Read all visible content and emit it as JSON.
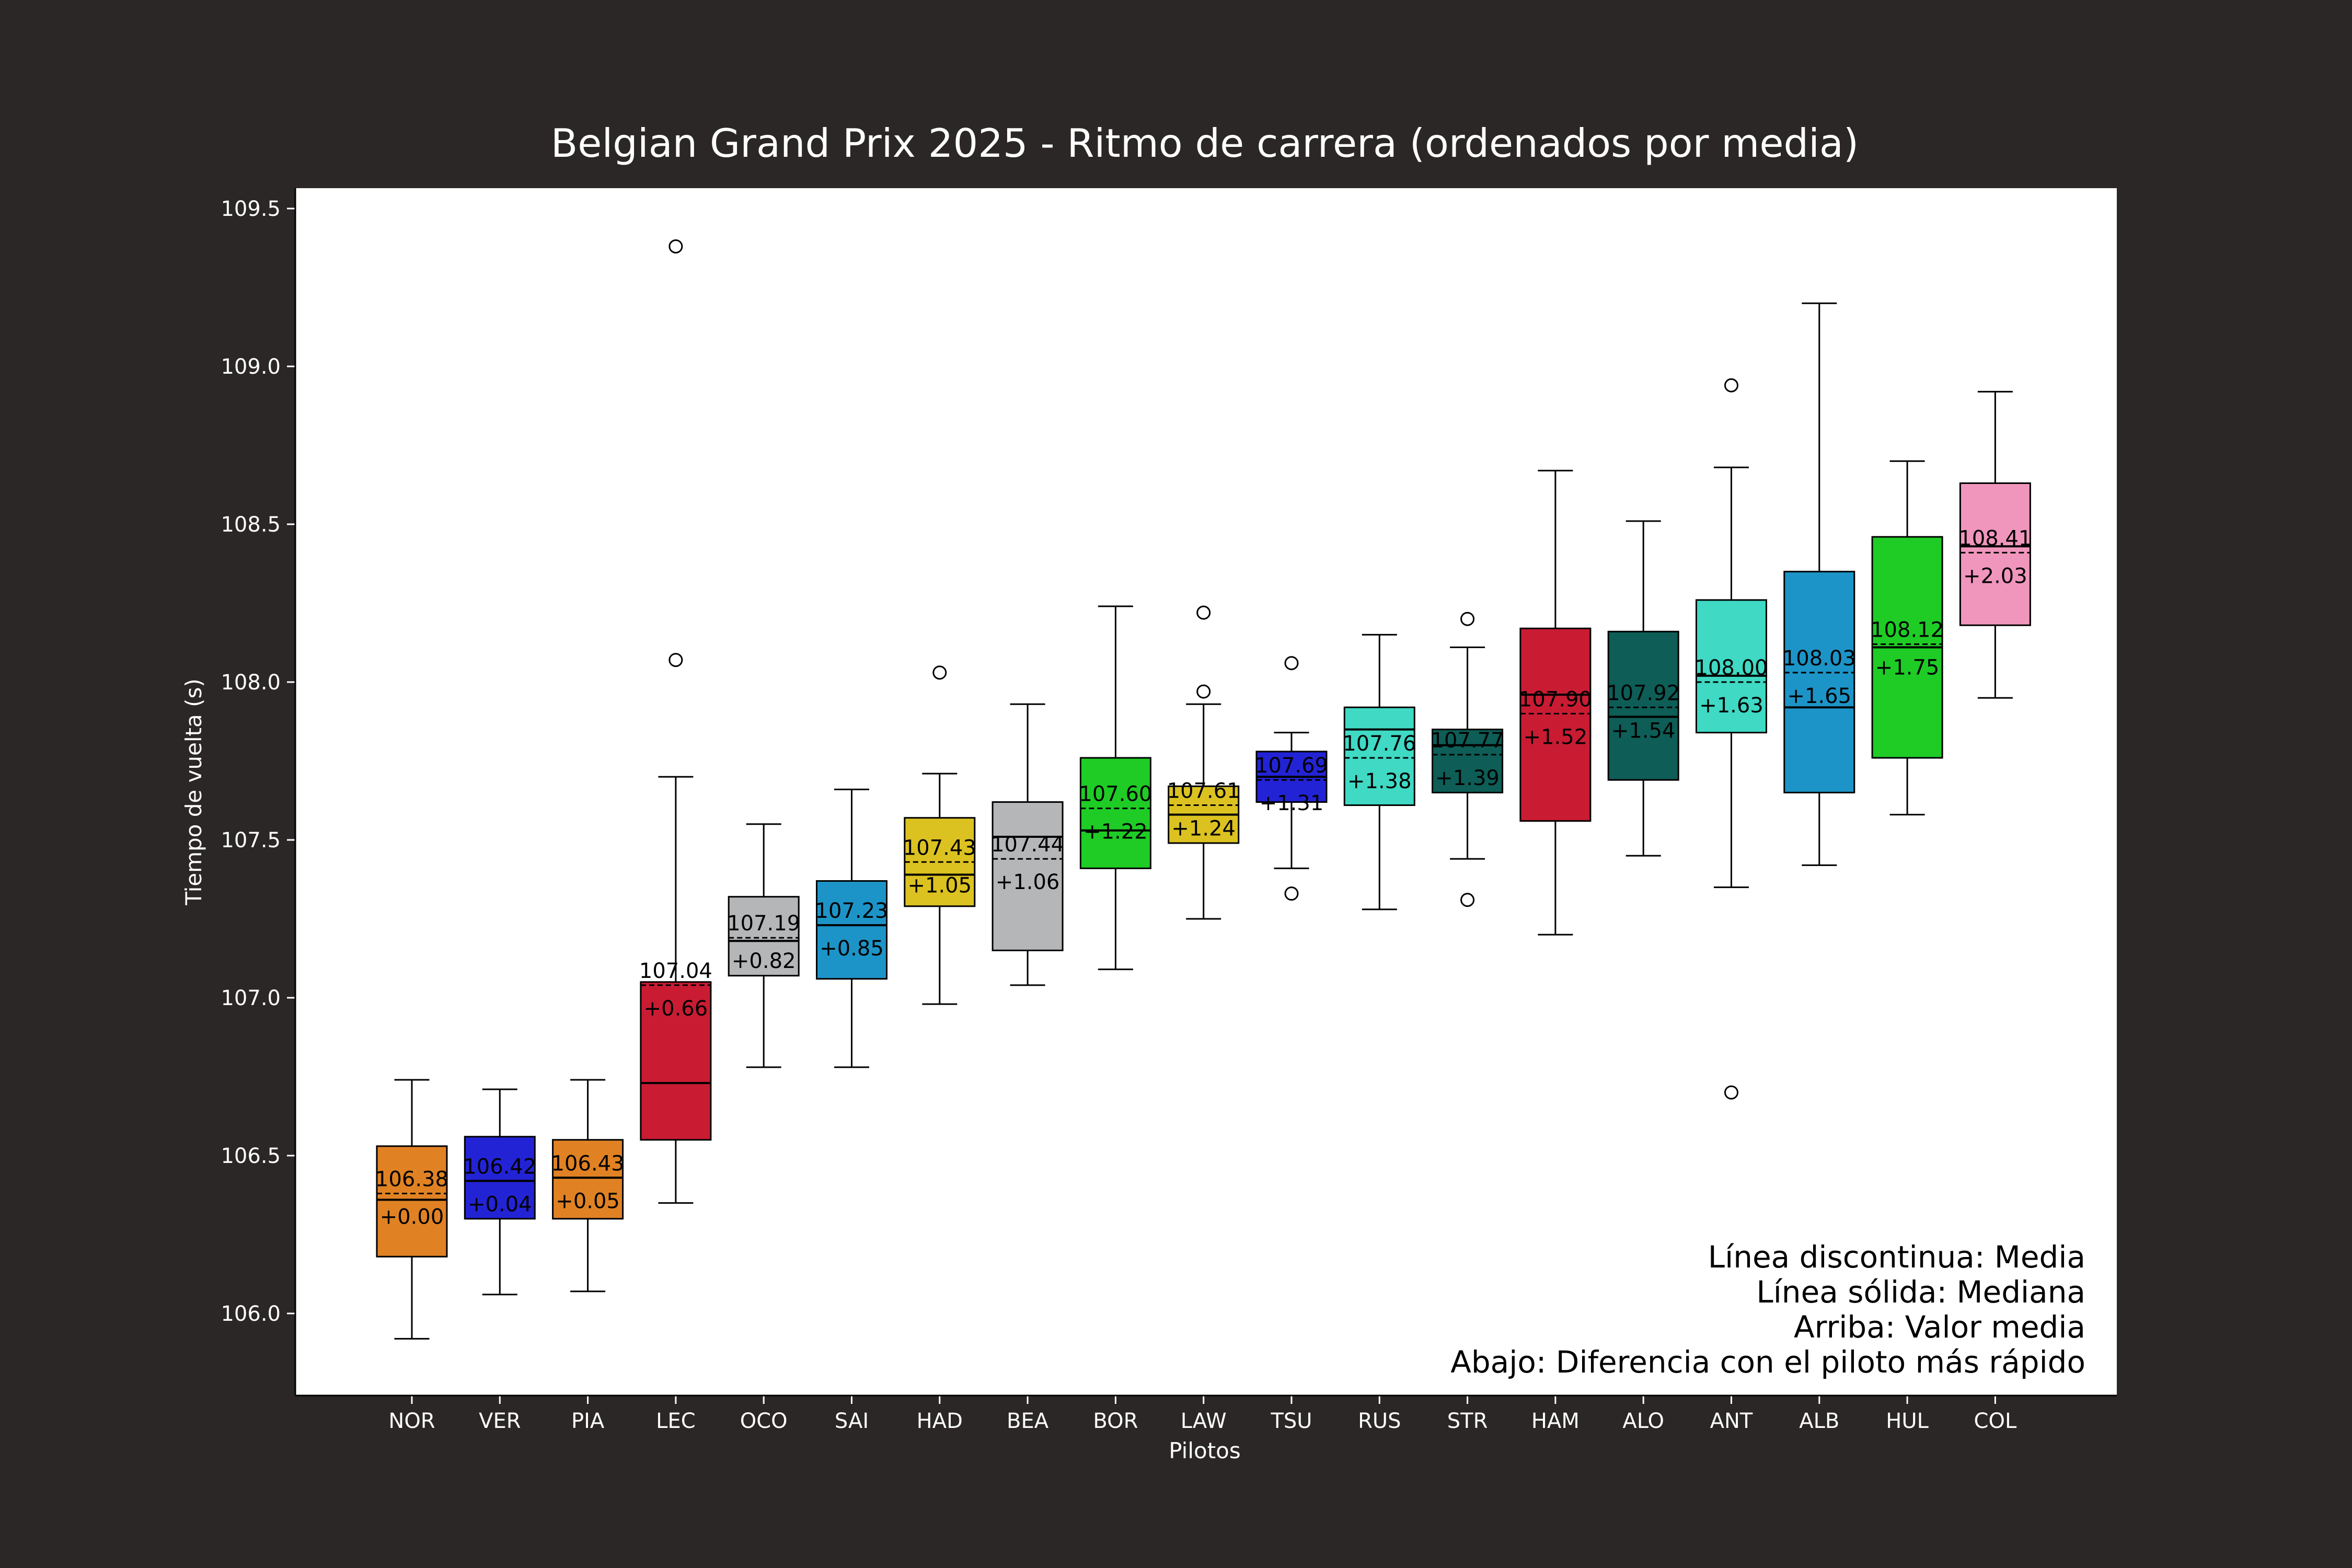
{
  "chart_data": {
    "type": "box",
    "title": "Belgian Grand Prix 2025 - Ritmo de carrera (ordenados por media)",
    "xlabel": "Pilotos",
    "ylabel": "Tiempo de vuelta (s)",
    "ylim": [
      105.75,
      109.57
    ],
    "yticks": [
      "106.0",
      "106.5",
      "107.0",
      "107.5",
      "108.0",
      "108.5",
      "109.0",
      "109.5"
    ],
    "grid": false,
    "legend_lines": [
      "Línea discontinua: Media",
      "Línea sólida: Mediana",
      "Arriba: Valor media",
      "Abajo: Diferencia con el piloto más rápido"
    ],
    "series": [
      {
        "driver": "NOR",
        "color": "#e08224",
        "whisker_low": 105.92,
        "q1": 106.18,
        "median": 106.36,
        "q3": 106.53,
        "whisker_high": 106.74,
        "mean": 106.38,
        "mean_label": "106.38",
        "delta_label": "+0.00",
        "outliers": []
      },
      {
        "driver": "VER",
        "color": "#2323d6",
        "whisker_low": 106.06,
        "q1": 106.3,
        "median": 106.42,
        "q3": 106.56,
        "whisker_high": 106.71,
        "mean": 106.42,
        "mean_label": "106.42",
        "delta_label": "+0.04",
        "outliers": []
      },
      {
        "driver": "PIA",
        "color": "#e08224",
        "whisker_low": 106.07,
        "q1": 106.3,
        "median": 106.43,
        "q3": 106.55,
        "whisker_high": 106.74,
        "mean": 106.43,
        "mean_label": "106.43",
        "delta_label": "+0.05",
        "outliers": []
      },
      {
        "driver": "LEC",
        "color": "#c91c33",
        "whisker_low": 106.35,
        "q1": 106.55,
        "median": 106.73,
        "q3": 107.05,
        "whisker_high": 107.7,
        "mean": 107.04,
        "mean_label": "107.04",
        "delta_label": "+0.66",
        "outliers": [
          108.07,
          109.38
        ]
      },
      {
        "driver": "OCO",
        "color": "#b4b6b8",
        "whisker_low": 106.78,
        "q1": 107.07,
        "median": 107.18,
        "q3": 107.32,
        "whisker_high": 107.55,
        "mean": 107.19,
        "mean_label": "107.19",
        "delta_label": "+0.82",
        "outliers": []
      },
      {
        "driver": "SAI",
        "color": "#1d94c7",
        "whisker_low": 106.78,
        "q1": 107.06,
        "median": 107.23,
        "q3": 107.37,
        "whisker_high": 107.66,
        "mean": 107.23,
        "mean_label": "107.23",
        "delta_label": "+0.85",
        "outliers": []
      },
      {
        "driver": "HAD",
        "color": "#dcc221",
        "whisker_low": 106.98,
        "q1": 107.29,
        "median": 107.39,
        "q3": 107.57,
        "whisker_high": 107.71,
        "mean": 107.43,
        "mean_label": "107.43",
        "delta_label": "+1.05",
        "outliers": [
          108.03
        ]
      },
      {
        "driver": "BEA",
        "color": "#b4b6b8",
        "whisker_low": 107.04,
        "q1": 107.15,
        "median": 107.51,
        "q3": 107.62,
        "whisker_high": 107.93,
        "mean": 107.44,
        "mean_label": "107.44",
        "delta_label": "+1.06",
        "outliers": []
      },
      {
        "driver": "BOR",
        "color": "#1fcc26",
        "whisker_low": 107.09,
        "q1": 107.41,
        "median": 107.53,
        "q3": 107.76,
        "whisker_high": 108.24,
        "mean": 107.6,
        "mean_label": "107.60",
        "delta_label": "+1.22",
        "outliers": []
      },
      {
        "driver": "LAW",
        "color": "#dcc221",
        "whisker_low": 107.25,
        "q1": 107.49,
        "median": 107.58,
        "q3": 107.67,
        "whisker_high": 107.93,
        "mean": 107.61,
        "mean_label": "107.61",
        "delta_label": "+1.24",
        "outliers": [
          107.97,
          108.22
        ]
      },
      {
        "driver": "TSU",
        "color": "#2323d6",
        "whisker_low": 107.41,
        "q1": 107.62,
        "median": 107.7,
        "q3": 107.78,
        "whisker_high": 107.84,
        "mean": 107.69,
        "mean_label": "107.69",
        "delta_label": "+1.31",
        "outliers": [
          107.33,
          108.06
        ]
      },
      {
        "driver": "RUS",
        "color": "#3fd9c4",
        "whisker_low": 107.28,
        "q1": 107.61,
        "median": 107.85,
        "q3": 107.92,
        "whisker_high": 108.15,
        "mean": 107.76,
        "mean_label": "107.76",
        "delta_label": "+1.38",
        "outliers": []
      },
      {
        "driver": "STR",
        "color": "#0e5d56",
        "whisker_low": 107.44,
        "q1": 107.65,
        "median": 107.8,
        "q3": 107.85,
        "whisker_high": 108.11,
        "mean": 107.77,
        "mean_label": "107.77",
        "delta_label": "+1.39",
        "outliers": [
          107.31,
          108.2
        ]
      },
      {
        "driver": "HAM",
        "color": "#c91c33",
        "whisker_low": 107.2,
        "q1": 107.56,
        "median": 107.96,
        "q3": 108.17,
        "whisker_high": 108.67,
        "mean": 107.9,
        "mean_label": "107.90",
        "delta_label": "+1.52",
        "outliers": []
      },
      {
        "driver": "ALO",
        "color": "#0e5d56",
        "whisker_low": 107.45,
        "q1": 107.69,
        "median": 107.89,
        "q3": 108.16,
        "whisker_high": 108.51,
        "mean": 107.92,
        "mean_label": "107.92",
        "delta_label": "+1.54",
        "outliers": []
      },
      {
        "driver": "ANT",
        "color": "#3fd9c4",
        "whisker_low": 107.35,
        "q1": 107.84,
        "median": 108.02,
        "q3": 108.26,
        "whisker_high": 108.68,
        "mean": 108.0,
        "mean_label": "108.00",
        "delta_label": "+1.63",
        "outliers": [
          106.7,
          108.94
        ]
      },
      {
        "driver": "ALB",
        "color": "#1d94c7",
        "whisker_low": 107.42,
        "q1": 107.65,
        "median": 107.92,
        "q3": 108.35,
        "whisker_high": 109.2,
        "mean": 108.03,
        "mean_label": "108.03",
        "delta_label": "+1.65",
        "outliers": []
      },
      {
        "driver": "HUL",
        "color": "#1fcc26",
        "whisker_low": 107.58,
        "q1": 107.76,
        "median": 108.11,
        "q3": 108.46,
        "whisker_high": 108.7,
        "mean": 108.12,
        "mean_label": "108.12",
        "delta_label": "+1.75",
        "outliers": []
      },
      {
        "driver": "COL",
        "color": "#f096bd",
        "whisker_low": 107.95,
        "q1": 108.18,
        "median": 108.43,
        "q3": 108.63,
        "whisker_high": 108.92,
        "mean": 108.41,
        "mean_label": "108.41",
        "delta_label": "+2.03",
        "outliers": []
      }
    ]
  }
}
